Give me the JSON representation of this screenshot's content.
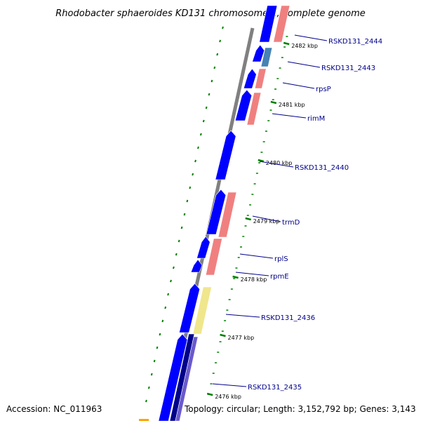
{
  "title": "Rhodobacter sphaeroides KD131 chromosome 1, complete genome",
  "accession_label": "Accession: NC_011963",
  "topology_label": "Topology: circular; Length: 3,152,792 bp; Genes: 3,143",
  "colors": {
    "backbone": "#808080",
    "cds": "#0000ff",
    "trna_like": "#f08080",
    "dark_blue": "#00008b",
    "purple": "#6a5acd",
    "steel": "#4682b4",
    "yellow": "#f0e68c",
    "orange": "#ffa500",
    "tick": "#008000",
    "label": "#00008b"
  },
  "scale_ticks": [
    {
      "label": "2482 kbp"
    },
    {
      "label": "2481 kbp"
    },
    {
      "label": "2480 kbp"
    },
    {
      "label": "2479 kbp"
    },
    {
      "label": "2478 kbp"
    },
    {
      "label": "2477 kbp"
    },
    {
      "label": "2476 kbp"
    }
  ],
  "gene_labels": [
    {
      "name": "RSKD131_2444"
    },
    {
      "name": "RSKD131_2443"
    },
    {
      "name": "rpsP"
    },
    {
      "name": "rimM"
    },
    {
      "name": "RSKD131_2440"
    },
    {
      "name": "trmD"
    },
    {
      "name": "rplS"
    },
    {
      "name": "rpmE"
    },
    {
      "name": "RSKD131_2436"
    },
    {
      "name": "RSKD131_2435"
    }
  ]
}
